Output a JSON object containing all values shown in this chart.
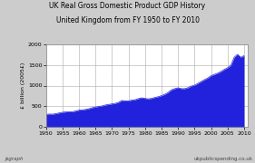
{
  "title_line1": "UK Real Gross Domestic Product GDP History",
  "title_line2": "United Kingdom from FY 1950 to FY 2010",
  "xlabel_bottom_left": "jsgraph",
  "xlabel_bottom_right": "ukpublicspending.co.uk",
  "ylabel": "£ billion (2005£)",
  "background_color": "#cccccc",
  "plot_bg_color": "#ffffff",
  "fill_color": "#2222dd",
  "line_color": "#2222dd",
  "xlim": [
    1950,
    2011
  ],
  "ylim": [
    0,
    2000
  ],
  "xticks": [
    1950,
    1955,
    1960,
    1965,
    1970,
    1975,
    1980,
    1985,
    1990,
    1995,
    2000,
    2005,
    2010
  ],
  "yticks": [
    0,
    500,
    1000,
    1500,
    2000
  ],
  "years": [
    1950,
    1951,
    1952,
    1953,
    1954,
    1955,
    1956,
    1957,
    1958,
    1959,
    1960,
    1961,
    1962,
    1963,
    1964,
    1965,
    1966,
    1967,
    1968,
    1969,
    1970,
    1971,
    1972,
    1973,
    1974,
    1975,
    1976,
    1977,
    1978,
    1979,
    1980,
    1981,
    1982,
    1983,
    1984,
    1985,
    1986,
    1987,
    1988,
    1989,
    1990,
    1991,
    1992,
    1993,
    1994,
    1995,
    1996,
    1997,
    1998,
    1999,
    2000,
    2001,
    2002,
    2003,
    2004,
    2005,
    2006,
    2007,
    2008,
    2009,
    2010
  ],
  "gdp": [
    305,
    315,
    312,
    325,
    342,
    358,
    366,
    372,
    370,
    388,
    408,
    415,
    426,
    443,
    468,
    485,
    498,
    510,
    533,
    546,
    560,
    572,
    598,
    642,
    632,
    632,
    650,
    660,
    686,
    706,
    690,
    680,
    692,
    715,
    732,
    758,
    790,
    835,
    897,
    926,
    947,
    926,
    926,
    948,
    988,
    1008,
    1052,
    1098,
    1142,
    1182,
    1238,
    1268,
    1298,
    1338,
    1388,
    1428,
    1488,
    1680,
    1750,
    1680,
    1720
  ]
}
